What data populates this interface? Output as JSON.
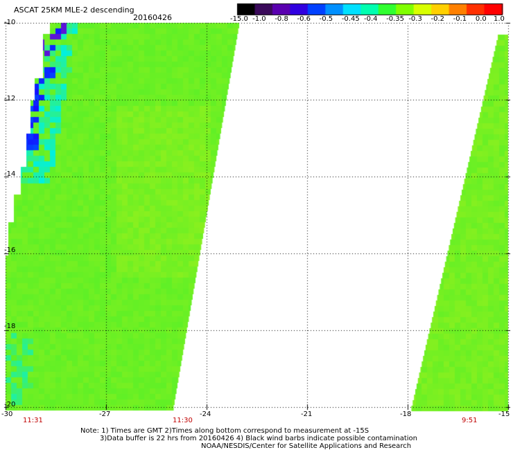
{
  "title": "ASCAT 25KM MLE-2 descending",
  "date": "20160426",
  "colorbar": {
    "labels": [
      "-15.0",
      "-1.0",
      "-0.8",
      "-0.6",
      "-0.5",
      "-0.45",
      "-0.4",
      "-0.35",
      "-0.3",
      "-0.2",
      "-0.1",
      "0.0",
      "1.0"
    ],
    "colors": [
      "#000000",
      "#3a0a5a",
      "#5a00b0",
      "#3000e0",
      "#0040ff",
      "#0090ff",
      "#00e0ff",
      "#00ffb0",
      "#30ff30",
      "#80ff00",
      "#d8ff00",
      "#ffd000",
      "#ff8000",
      "#ff3000",
      "#ff0000"
    ]
  },
  "map": {
    "lon_min": -30,
    "lon_max": -15,
    "lat_min": -20,
    "lat_max": -10,
    "lat_ticks": [
      "-10",
      "-12",
      "-14",
      "-16",
      "-18",
      "-20"
    ],
    "lon_ticks": [
      "-30",
      "-27",
      "-24",
      "-21",
      "-18",
      "-15"
    ],
    "grid_color": "#000000",
    "data_colors": {
      "base": "#5ff026",
      "bright": "#8ef01e",
      "cyan": "#00f0e0",
      "blue": "#0050ff",
      "purple": "#5a14d8",
      "deep_blue": "#1800ff"
    }
  },
  "times": [
    "11:31",
    "11:30",
    "9:51"
  ],
  "notes": [
    "Note: 1) Times are GMT 2)Times along bottom correspond to measurement at -15S",
    "3)Data buffer is 22 hrs from 20160426 4) Black wind barbs indicate possible contamination",
    "NOAA/NESDIS/Center for Satellite Applications and Research"
  ]
}
